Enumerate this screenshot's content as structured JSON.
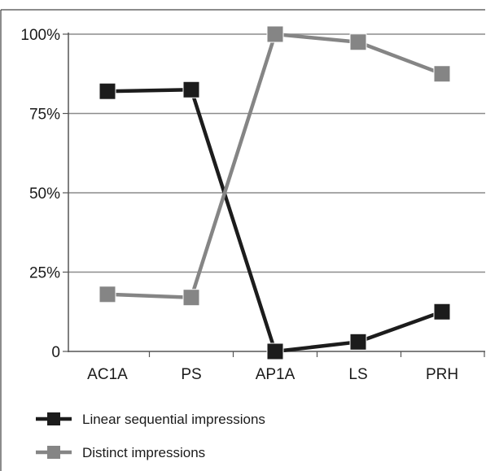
{
  "chart_data": {
    "type": "line",
    "categories": [
      "AC1A",
      "PS",
      "AP1A",
      "LS",
      "PRH"
    ],
    "y_tick_labels": [
      "0",
      "25%",
      "50%",
      "75%",
      "100%"
    ],
    "ylim": [
      0,
      100
    ],
    "grid": true,
    "legend_position": "bottom-left",
    "series": [
      {
        "name": "Linear sequential impressions",
        "values": [
          82,
          82.5,
          0,
          3,
          12.5
        ],
        "color": "#1c1c1c"
      },
      {
        "name": "Distinct impressions",
        "values": [
          18,
          17,
          100,
          97.5,
          87.5
        ],
        "color": "#858585"
      }
    ],
    "colors": {
      "grid": "#8c8c8c",
      "axis": "#555555",
      "frame": "#1a1a1a"
    }
  }
}
